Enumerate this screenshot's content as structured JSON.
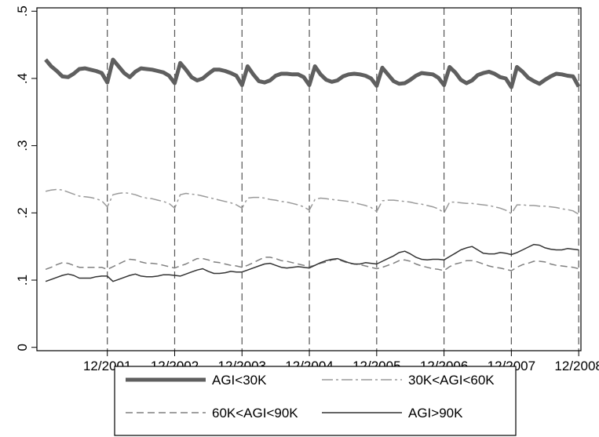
{
  "chart_data": {
    "type": "line",
    "title": "",
    "xlabel": "",
    "ylabel": "",
    "x_tick_labels": [
      "12/2001",
      "12/2002",
      "12/2003",
      "12/2004",
      "12/2005",
      "12/2006",
      "12/2007",
      "12/2008"
    ],
    "y_tick_labels": [
      "0",
      ".1",
      ".2",
      ".3",
      ".4",
      ".5"
    ],
    "y_ticks": [
      0,
      0.1,
      0.2,
      0.3,
      0.4,
      0.5
    ],
    "ylim": [
      -0.005,
      0.505
    ],
    "xlim": [
      "2001-01",
      "2008-12"
    ],
    "vertical_reference_lines": [
      "2001-12",
      "2002-12",
      "2003-12",
      "2004-12",
      "2005-12",
      "2006-12",
      "2007-12",
      "2008-12"
    ],
    "grid": false,
    "legend_position": "bottom",
    "x": [
      "2001-01",
      "2001-02",
      "2001-03",
      "2001-04",
      "2001-05",
      "2001-06",
      "2001-07",
      "2001-08",
      "2001-09",
      "2001-10",
      "2001-11",
      "2001-12",
      "2002-01",
      "2002-02",
      "2002-03",
      "2002-04",
      "2002-05",
      "2002-06",
      "2002-07",
      "2002-08",
      "2002-09",
      "2002-10",
      "2002-11",
      "2002-12",
      "2003-01",
      "2003-02",
      "2003-03",
      "2003-04",
      "2003-05",
      "2003-06",
      "2003-07",
      "2003-08",
      "2003-09",
      "2003-10",
      "2003-11",
      "2003-12",
      "2004-01",
      "2004-02",
      "2004-03",
      "2004-04",
      "2004-05",
      "2004-06",
      "2004-07",
      "2004-08",
      "2004-09",
      "2004-10",
      "2004-11",
      "2004-12",
      "2005-01",
      "2005-02",
      "2005-03",
      "2005-04",
      "2005-05",
      "2005-06",
      "2005-07",
      "2005-08",
      "2005-09",
      "2005-10",
      "2005-11",
      "2005-12",
      "2006-01",
      "2006-02",
      "2006-03",
      "2006-04",
      "2006-05",
      "2006-06",
      "2006-07",
      "2006-08",
      "2006-09",
      "2006-10",
      "2006-11",
      "2006-12",
      "2007-01",
      "2007-02",
      "2007-03",
      "2007-04",
      "2007-05",
      "2007-06",
      "2007-07",
      "2007-08",
      "2007-09",
      "2007-10",
      "2007-11",
      "2007-12",
      "2008-01",
      "2008-02",
      "2008-03",
      "2008-04",
      "2008-05",
      "2008-06",
      "2008-07",
      "2008-08",
      "2008-09",
      "2008-10",
      "2008-11",
      "2008-12"
    ],
    "series": [
      {
        "name": "AGI<30K",
        "color": "#5f5f5f",
        "values": [
          0.428,
          0.418,
          0.411,
          0.403,
          0.402,
          0.407,
          0.414,
          0.415,
          0.413,
          0.411,
          0.408,
          0.394,
          0.428,
          0.418,
          0.408,
          0.402,
          0.41,
          0.415,
          0.414,
          0.413,
          0.411,
          0.409,
          0.404,
          0.393,
          0.423,
          0.413,
          0.402,
          0.397,
          0.4,
          0.407,
          0.413,
          0.413,
          0.411,
          0.408,
          0.404,
          0.39,
          0.418,
          0.406,
          0.396,
          0.394,
          0.397,
          0.404,
          0.407,
          0.407,
          0.406,
          0.406,
          0.402,
          0.39,
          0.418,
          0.406,
          0.398,
          0.395,
          0.397,
          0.403,
          0.406,
          0.407,
          0.406,
          0.404,
          0.4,
          0.389,
          0.416,
          0.406,
          0.396,
          0.392,
          0.393,
          0.398,
          0.404,
          0.408,
          0.407,
          0.406,
          0.401,
          0.39,
          0.417,
          0.409,
          0.398,
          0.393,
          0.397,
          0.405,
          0.408,
          0.41,
          0.407,
          0.402,
          0.4,
          0.387,
          0.417,
          0.41,
          0.401,
          0.396,
          0.392,
          0.398,
          0.403,
          0.407,
          0.406,
          0.404,
          0.403,
          0.388
        ]
      },
      {
        "name": "30K<AGI<60K",
        "color": "#9a9a9a",
        "values": [
          0.232,
          0.234,
          0.235,
          0.234,
          0.231,
          0.228,
          0.225,
          0.224,
          0.223,
          0.221,
          0.218,
          0.209,
          0.227,
          0.229,
          0.23,
          0.229,
          0.227,
          0.224,
          0.222,
          0.221,
          0.219,
          0.217,
          0.214,
          0.207,
          0.227,
          0.229,
          0.228,
          0.227,
          0.225,
          0.223,
          0.221,
          0.219,
          0.217,
          0.215,
          0.212,
          0.207,
          0.222,
          0.223,
          0.223,
          0.222,
          0.22,
          0.219,
          0.217,
          0.216,
          0.214,
          0.212,
          0.209,
          0.204,
          0.22,
          0.222,
          0.221,
          0.22,
          0.219,
          0.218,
          0.217,
          0.215,
          0.213,
          0.211,
          0.208,
          0.202,
          0.218,
          0.219,
          0.219,
          0.218,
          0.217,
          0.216,
          0.214,
          0.213,
          0.211,
          0.209,
          0.206,
          0.2,
          0.216,
          0.216,
          0.215,
          0.214,
          0.214,
          0.213,
          0.212,
          0.211,
          0.209,
          0.207,
          0.204,
          0.199,
          0.212,
          0.212,
          0.211,
          0.211,
          0.21,
          0.21,
          0.209,
          0.208,
          0.206,
          0.205,
          0.203,
          0.198
        ]
      },
      {
        "name": "60K<AGI<90K",
        "color": "#808080",
        "values": [
          0.116,
          0.119,
          0.123,
          0.126,
          0.125,
          0.122,
          0.119,
          0.119,
          0.119,
          0.119,
          0.119,
          0.116,
          0.12,
          0.124,
          0.128,
          0.131,
          0.13,
          0.127,
          0.125,
          0.125,
          0.124,
          0.122,
          0.12,
          0.118,
          0.121,
          0.124,
          0.128,
          0.132,
          0.132,
          0.13,
          0.127,
          0.126,
          0.124,
          0.122,
          0.121,
          0.119,
          0.122,
          0.126,
          0.13,
          0.134,
          0.134,
          0.132,
          0.129,
          0.128,
          0.126,
          0.124,
          0.122,
          0.12,
          0.122,
          0.125,
          0.127,
          0.13,
          0.131,
          0.128,
          0.125,
          0.124,
          0.123,
          0.121,
          0.119,
          0.117,
          0.119,
          0.122,
          0.125,
          0.129,
          0.13,
          0.128,
          0.124,
          0.121,
          0.119,
          0.117,
          0.116,
          0.114,
          0.12,
          0.124,
          0.126,
          0.129,
          0.129,
          0.127,
          0.124,
          0.121,
          0.119,
          0.118,
          0.116,
          0.114,
          0.119,
          0.123,
          0.125,
          0.128,
          0.128,
          0.127,
          0.124,
          0.122,
          0.121,
          0.12,
          0.119,
          0.117
        ]
      },
      {
        "name": "AGI>90K",
        "color": "#333333",
        "values": [
          0.098,
          0.101,
          0.104,
          0.107,
          0.109,
          0.107,
          0.103,
          0.103,
          0.103,
          0.105,
          0.106,
          0.106,
          0.098,
          0.101,
          0.104,
          0.107,
          0.109,
          0.106,
          0.105,
          0.105,
          0.106,
          0.108,
          0.108,
          0.107,
          0.106,
          0.109,
          0.112,
          0.115,
          0.117,
          0.113,
          0.11,
          0.11,
          0.111,
          0.113,
          0.112,
          0.112,
          0.115,
          0.118,
          0.121,
          0.124,
          0.125,
          0.122,
          0.119,
          0.118,
          0.119,
          0.12,
          0.119,
          0.118,
          0.122,
          0.126,
          0.129,
          0.131,
          0.132,
          0.129,
          0.126,
          0.124,
          0.124,
          0.126,
          0.125,
          0.124,
          0.128,
          0.132,
          0.136,
          0.141,
          0.143,
          0.139,
          0.134,
          0.131,
          0.13,
          0.131,
          0.131,
          0.13,
          0.135,
          0.14,
          0.145,
          0.148,
          0.15,
          0.145,
          0.14,
          0.139,
          0.139,
          0.141,
          0.14,
          0.138,
          0.141,
          0.145,
          0.149,
          0.153,
          0.152,
          0.148,
          0.146,
          0.145,
          0.145,
          0.147,
          0.146,
          0.145
        ]
      }
    ]
  }
}
